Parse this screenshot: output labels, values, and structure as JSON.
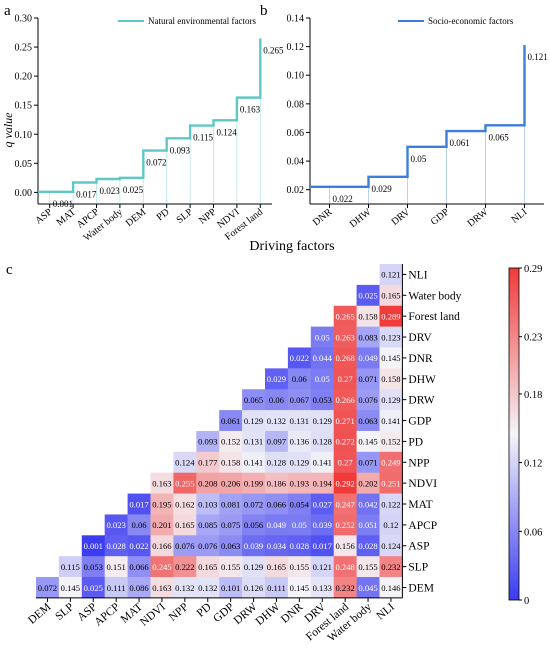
{
  "colors": {
    "step_a": "#5ec8c8",
    "step_b": "#3d7fd8",
    "heat_low": "#3b3bf0",
    "heat_mid": "#f4f4f8",
    "heat_high": "#f03a3a"
  },
  "panel_labels": {
    "a": "a",
    "b": "b",
    "c": "c"
  },
  "shared_xlabel": "Driving factors",
  "chart_data": [
    {
      "id": "a",
      "type": "line",
      "step": true,
      "legend": "Natural environmental factors",
      "legend_position": "top-right",
      "categories": [
        "ASP",
        "MAT",
        "APCP",
        "Water body",
        "DEM",
        "PD",
        "SLP",
        "NPP",
        "NDVI",
        "Forest land"
      ],
      "values": [
        0.001,
        0.017,
        0.023,
        0.025,
        0.072,
        0.093,
        0.115,
        0.124,
        0.163,
        0.265
      ],
      "value_labels": [
        "0.001",
        "0.017",
        "0.023",
        "0.025",
        "0.072",
        "0.093",
        "0.115",
        "0.124",
        "0.163",
        "0.265"
      ],
      "ylabel": "q value",
      "ylim": [
        -0.02,
        0.3
      ],
      "yticks": [
        0.0,
        0.05,
        0.1,
        0.15,
        0.2,
        0.25,
        0.3
      ],
      "ytick_labels": [
        "0.00",
        "0.05",
        "0.10",
        "0.15",
        "0.20",
        "0.25",
        "0.30"
      ]
    },
    {
      "id": "b",
      "type": "line",
      "step": true,
      "legend": "Socio-economic factors",
      "legend_position": "top-right",
      "categories": [
        "DNR",
        "DHW",
        "DRV",
        "GDP",
        "DRW",
        "NLI"
      ],
      "values": [
        0.022,
        0.029,
        0.05,
        0.061,
        0.065,
        0.121
      ],
      "value_labels": [
        "0.022",
        "0.029",
        "0.05",
        "0.061",
        "0.065",
        "0.121"
      ],
      "ylim": [
        0.01,
        0.14
      ],
      "yticks": [
        0.02,
        0.04,
        0.06,
        0.08,
        0.1,
        0.12,
        0.14
      ],
      "ytick_labels": [
        "0.02",
        "0.04",
        "0.06",
        "0.08",
        "0.10",
        "0.12",
        "0.14"
      ]
    },
    {
      "id": "c",
      "type": "heatmap",
      "row_labels": [
        "NLI",
        "Water body",
        "Forest land",
        "DRV",
        "DNR",
        "DHW",
        "DRW",
        "GDP",
        "PD",
        "NPP",
        "NDVI",
        "MAT",
        "APCP",
        "ASP",
        "SLP",
        "DEM"
      ],
      "col_labels": [
        "DEM",
        "SLP",
        "ASP",
        "APCP",
        "MAT",
        "NDVI",
        "NPP",
        "PD",
        "GDP",
        "DRW",
        "DHW",
        "DNR",
        "DRV",
        "Forest land",
        "Water body",
        "NLI"
      ],
      "values": [
        [
          "0.121"
        ],
        [
          "0.025",
          "0.165"
        ],
        [
          "0.265",
          "0.158",
          "0.289"
        ],
        [
          "0.05",
          "0.263",
          "0.083",
          "0.123"
        ],
        [
          "0.022",
          "0.044",
          "0.268",
          "0.049",
          "0.145"
        ],
        [
          "0.029",
          "0.06",
          "0.05",
          "0.27",
          "0.071",
          "0.158"
        ],
        [
          "0.065",
          "0.06",
          "0.067",
          "0.053",
          "0.266",
          "0.076",
          "0.129"
        ],
        [
          "0.061",
          "0.129",
          "0.132",
          "0.131",
          "0.129",
          "0.271",
          "0.063",
          "0.141"
        ],
        [
          "0.093",
          "0.152",
          "0.131",
          "0.097",
          "0.136",
          "0.128",
          "0.272",
          "0.145",
          "0.152"
        ],
        [
          "0.124",
          "0.177",
          "0.158",
          "0.141",
          "0.128",
          "0.129",
          "0.141",
          "0.27",
          "0.071",
          "0.249"
        ],
        [
          "0.163",
          "0.255",
          "0.208",
          "0.206",
          "0.199",
          "0.186",
          "0.193",
          "0.194",
          "0.292",
          "0.202",
          "0.251"
        ],
        [
          "0.017",
          "0.195",
          "0.162",
          "0.103",
          "0.081",
          "0.072",
          "0.066",
          "0.054",
          "0.027",
          "0.247",
          "0.042",
          "0.122"
        ],
        [
          "0.023",
          "0.06",
          "0.201",
          "0.165",
          "0.085",
          "0.075",
          "0.056",
          "0.049",
          "0.05",
          "0.039",
          "0.252",
          "0.051",
          "0.12"
        ],
        [
          "0.001",
          "0.028",
          "0.022",
          "0.166",
          "0.076",
          "0.076",
          "0.063",
          "0.039",
          "0.034",
          "0.028",
          "0.017",
          "0.156",
          "0.028",
          "0.124"
        ],
        [
          "0.115",
          "0.053",
          "0.151",
          "0.066",
          "0.245",
          "0.222",
          "0.165",
          "0.155",
          "0.129",
          "0.165",
          "0.155",
          "0.121",
          "0.248",
          "0.155",
          "0.232"
        ],
        [
          "0.072",
          "0.145",
          "0.025",
          "0.111",
          "0.086",
          "0.163",
          "0.132",
          "0.132",
          "0.101",
          "0.126",
          "0.111",
          "0.145",
          "0.133",
          "0.232",
          "0.045",
          "0.146"
        ]
      ],
      "colorbar_ticks": [
        "0.29",
        "0.23",
        "0.18",
        "0.12",
        "0.06",
        "0"
      ],
      "colorbar_range": [
        0,
        0.29
      ]
    }
  ]
}
